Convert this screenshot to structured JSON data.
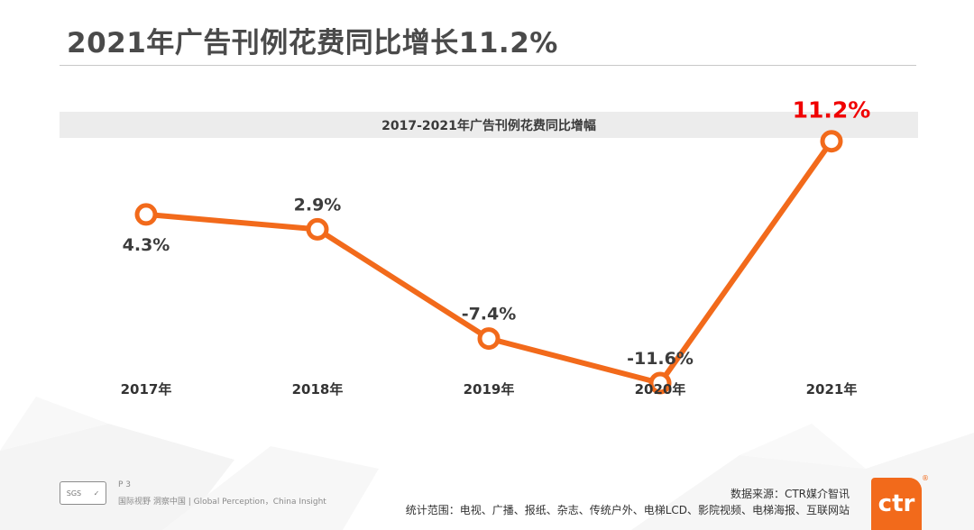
{
  "slide": {
    "title": "2021年广告刊例花费同比增长11.2%"
  },
  "chart_data": {
    "type": "line",
    "title": "2017-2021年广告刊例花费同比增幅",
    "categories": [
      "2017年",
      "2018年",
      "2019年",
      "2020年",
      "2021年"
    ],
    "values": [
      4.3,
      2.9,
      -7.4,
      -11.6,
      11.2
    ],
    "data_labels": [
      "4.3%",
      "2.9%",
      "-7.4%",
      "-11.6%",
      "11.2%"
    ],
    "highlight_index": 4,
    "ylim": [
      -15,
      15
    ],
    "grid": false,
    "colors": {
      "line": "#f26a1b",
      "label": "#3c3c3c",
      "highlight_label": "#f00000"
    }
  },
  "footer": {
    "page": "P 3",
    "tagline": "国际视野  洞察中国 | Global Perception，China Insight",
    "source": "数据来源：CTR媒介智讯",
    "scope": "统计范围：电视、广播、报纸、杂志、传统户外、电梯LCD、影院视频、电梯海报、互联网站",
    "logo_text": "ctr",
    "logo_mark": "®",
    "badge_left": "SGS",
    "badge_right": "✓"
  }
}
